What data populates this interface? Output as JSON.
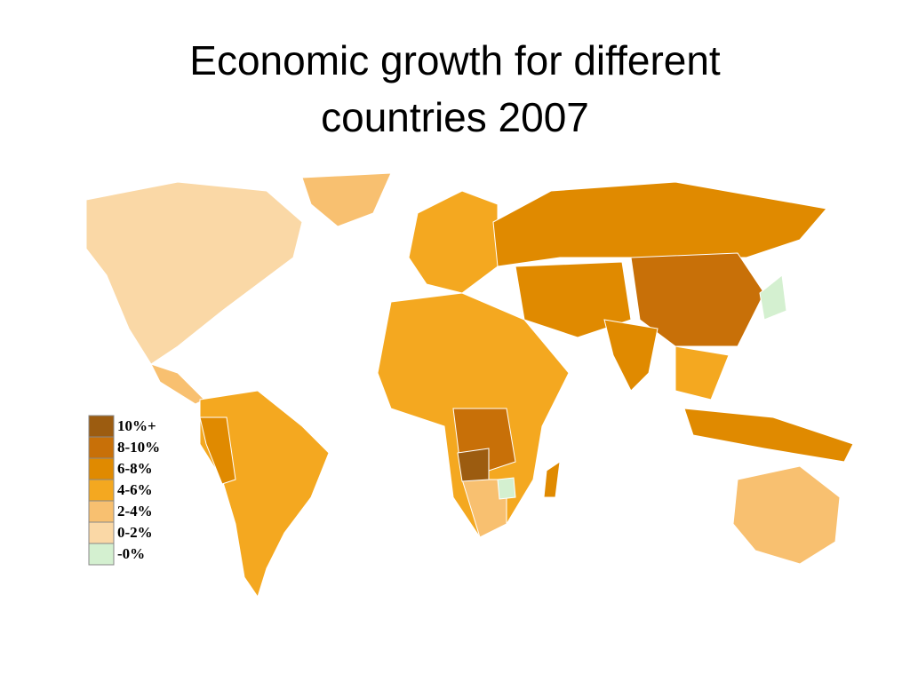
{
  "title": "Economic growth for different countries 2007",
  "legend": {
    "items": [
      {
        "label": "10%+",
        "color": "#9c5c10"
      },
      {
        "label": "8-10%",
        "color": "#c87008"
      },
      {
        "label": "6-8%",
        "color": "#e08a00"
      },
      {
        "label": "4-6%",
        "color": "#f4a820"
      },
      {
        "label": "2-4%",
        "color": "#f8c070"
      },
      {
        "label": "0-2%",
        "color": "#fad8a6"
      },
      {
        "label": "-0%",
        "color": "#d4f0d0"
      }
    ]
  }
}
